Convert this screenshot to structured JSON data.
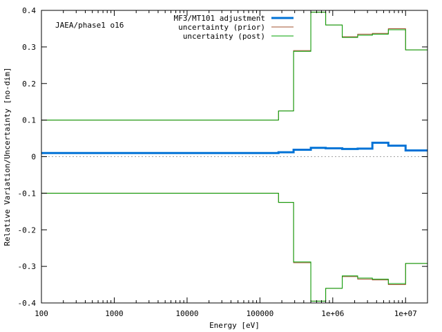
{
  "chart_data": {
    "type": "line",
    "annotation": "JAEA/phase1 o16",
    "xlabel": "Energy [eV]",
    "ylabel": "Relative Variation/Uncertainty [no-dim]",
    "xscale": "log",
    "xlim": [
      100,
      20000000
    ],
    "ylim": [
      -0.4,
      0.4
    ],
    "x_ticks": [
      {
        "value": 100,
        "label": "100"
      },
      {
        "value": 1000,
        "label": "1000"
      },
      {
        "value": 10000,
        "label": "10000"
      },
      {
        "value": 100000,
        "label": "100000"
      },
      {
        "value": 1000000,
        "label": "1e+06"
      },
      {
        "value": 10000000,
        "label": "1e+07"
      }
    ],
    "y_ticks": [
      {
        "value": -0.4,
        "label": "-0.4"
      },
      {
        "value": -0.3,
        "label": "-0.3"
      },
      {
        "value": -0.2,
        "label": "-0.2"
      },
      {
        "value": -0.1,
        "label": "-0.1"
      },
      {
        "value": 0,
        "label": "0"
      },
      {
        "value": 0.1,
        "label": "0.1"
      },
      {
        "value": 0.2,
        "label": "0.2"
      },
      {
        "value": 0.3,
        "label": "0.3"
      },
      {
        "value": 0.4,
        "label": "0.4"
      }
    ],
    "zero_line": true,
    "legend_position": "top-right",
    "bin_edges": [
      100,
      180000,
      290000,
      500000,
      800000,
      1350000,
      2200000,
      3500000,
      5800000,
      10000000,
      20000000
    ],
    "series": [
      {
        "name": "MF3/MT101 adjustment",
        "color": "#0072d6",
        "style": "thick",
        "mirror": false,
        "values": [
          0.01,
          0.012,
          0.019,
          0.024,
          0.023,
          0.021,
          0.022,
          0.038,
          0.03,
          0.017
        ]
      },
      {
        "name": "uncertainty (prior)",
        "color": "#a0522d",
        "style": "thin",
        "mirror": true,
        "values": [
          0.1,
          0.125,
          0.29,
          0.395,
          0.36,
          0.328,
          0.335,
          0.337,
          0.35,
          0.292
        ]
      },
      {
        "name": "uncertainty (post)",
        "color": "#00a000",
        "style": "thin",
        "mirror": true,
        "values": [
          0.1,
          0.125,
          0.288,
          0.395,
          0.36,
          0.326,
          0.332,
          0.335,
          0.347,
          0.292
        ]
      }
    ]
  }
}
